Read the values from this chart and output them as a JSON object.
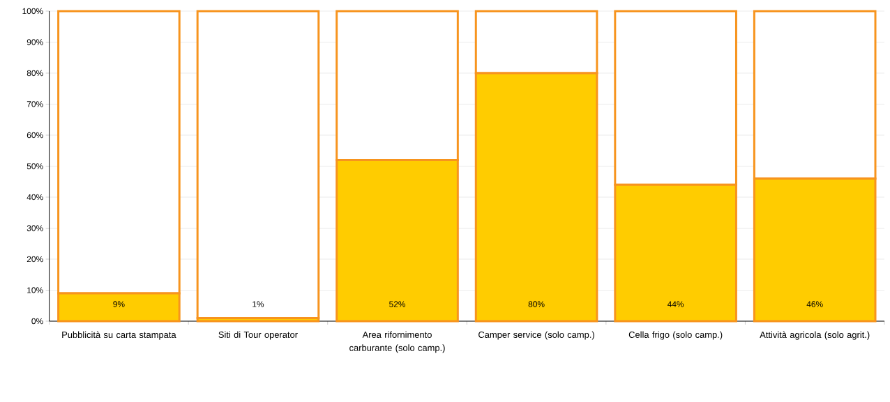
{
  "chart_data": {
    "type": "bar",
    "stacked": true,
    "categories": [
      "Pubblicità su carta stampata",
      "Siti di Tour operator",
      "Area rifornimento carburante (solo camp.)",
      "Camper service (solo camp.)",
      "Cella frigo (solo camp.)",
      "Attività agricola (solo agrit.)"
    ],
    "series": [
      {
        "color": "#ffcc00",
        "values": [
          9,
          1,
          52,
          80,
          44,
          46
        ],
        "value_labels": [
          "9%",
          "1%",
          "52%",
          "80%",
          "44%",
          "46%"
        ]
      },
      {
        "color": "#ffffff",
        "values": [
          91,
          99,
          48,
          20,
          56,
          54
        ]
      }
    ],
    "ylim": [
      0,
      100
    ],
    "yticks": [
      {
        "value": 0,
        "label": "0%"
      },
      {
        "value": 10,
        "label": "10%"
      },
      {
        "value": 20,
        "label": "20%"
      },
      {
        "value": 30,
        "label": "30%"
      },
      {
        "value": 40,
        "label": "40%"
      },
      {
        "value": 50,
        "label": "50%"
      },
      {
        "value": 60,
        "label": "60%"
      },
      {
        "value": 70,
        "label": "70%"
      },
      {
        "value": 80,
        "label": "80%"
      },
      {
        "value": 90,
        "label": "90%"
      },
      {
        "value": 100,
        "label": "100%"
      }
    ],
    "grid": "y"
  }
}
